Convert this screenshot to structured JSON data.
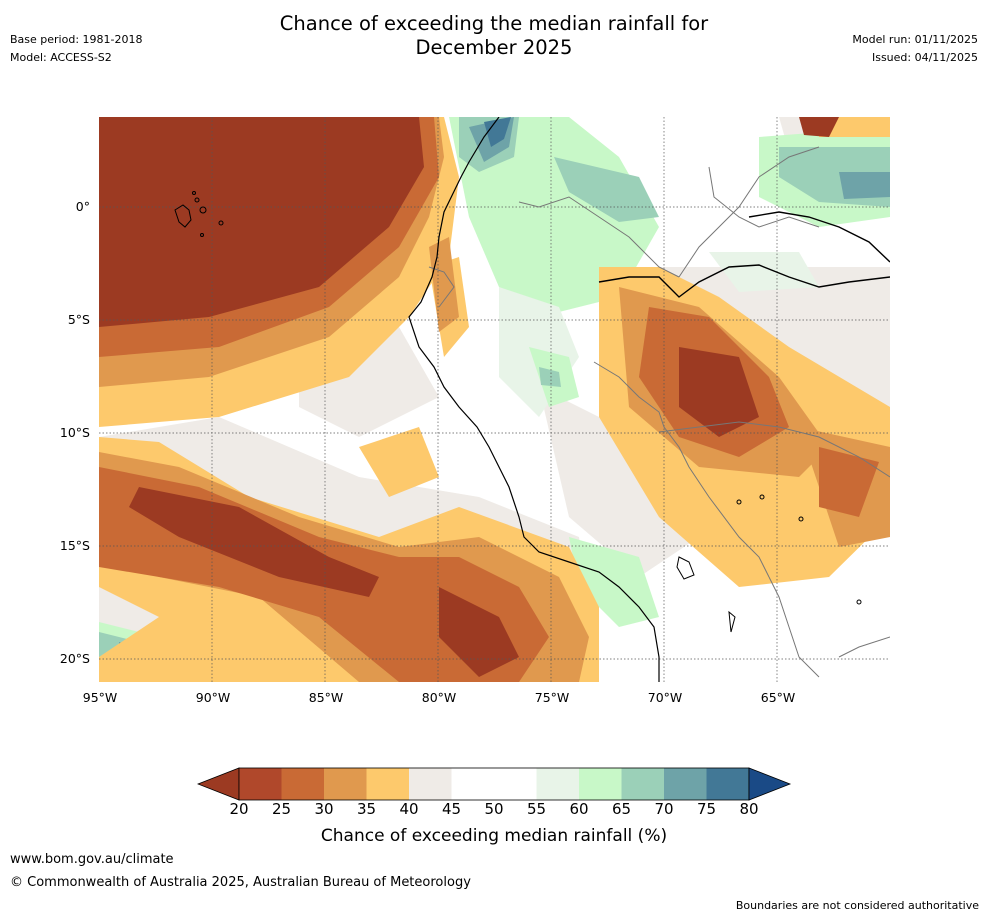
{
  "title": "Chance of exceeding the median rainfall for\nDecember 2025",
  "title_line1": "Chance of exceeding the median rainfall for",
  "title_line2": "December 2025",
  "base_period": "Base period: 1981-2018",
  "model": "Model: ACCESS-S2",
  "model_run": "Model run: 01/11/2025",
  "issued": "Issued: 04/11/2025",
  "longitude_ticks": [
    "95°W",
    "90°W",
    "85°W",
    "80°W",
    "75°W",
    "70°W",
    "65°W"
  ],
  "latitude_ticks": [
    "0°",
    "5°S",
    "10°S",
    "15°S",
    "20°S"
  ],
  "colorbar": {
    "label": "Chance of exceeding median rainfall (%)",
    "ticks": [
      "20",
      "25",
      "30",
      "35",
      "40",
      "45",
      "50",
      "55",
      "60",
      "65",
      "70",
      "75",
      "80"
    ],
    "colors": [
      "#9c3a22",
      "#b0482b",
      "#c96a35",
      "#e0994e",
      "#fdc96c",
      "#efebe7",
      "#ffffff",
      "#ffffff",
      "#e8f4e8",
      "#c8f8c8",
      "#9bd0b8",
      "#6ea3a8",
      "#427896",
      "#1a4a86"
    ]
  },
  "footer": {
    "website": "www.bom.gov.au/climate",
    "copyright": "© Commonwealth of Australia 2025, Australian Bureau of Meteorology",
    "disclaimer": "Boundaries are not considered authoritative"
  }
}
